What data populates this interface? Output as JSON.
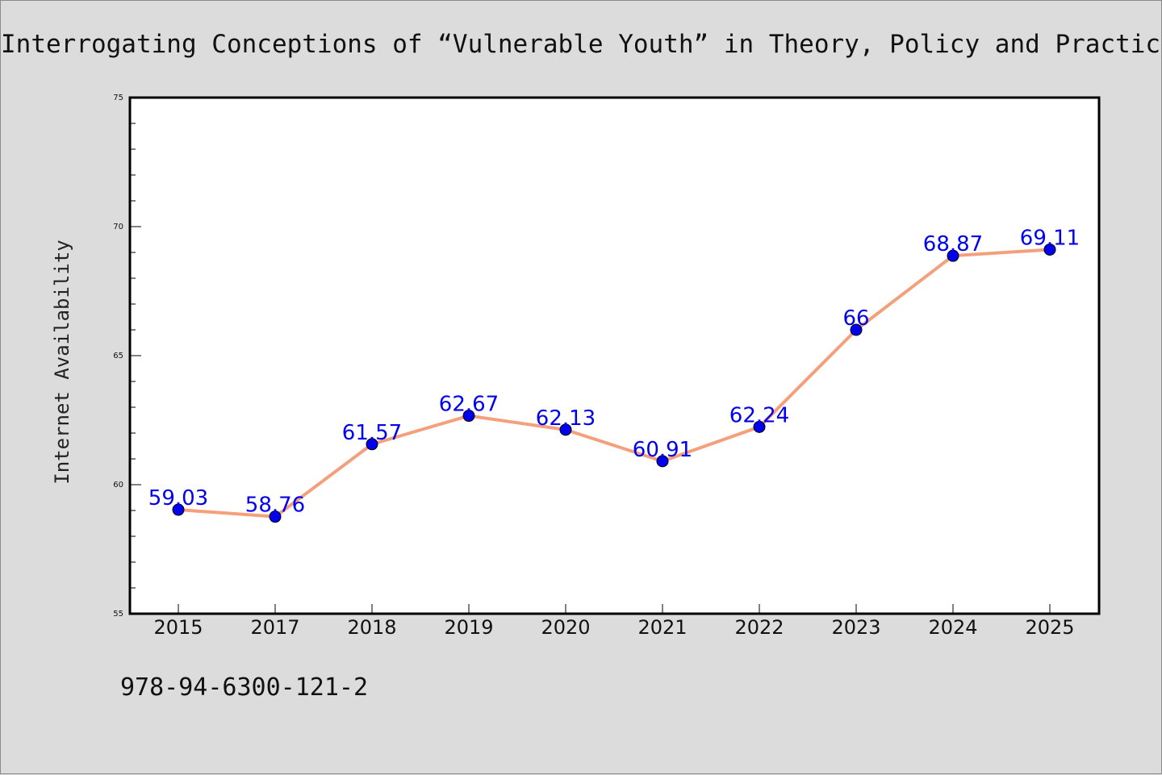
{
  "title": "Interrogating Conceptions of “Vulnerable Youth” in Theory, Policy and Practice",
  "isbn": "978-94-6300-121-2",
  "chart_data": {
    "type": "line",
    "title": "Interrogating Conceptions of “Vulnerable Youth” in Theory, Policy and Practice",
    "xlabel": "",
    "ylabel": "Internet Availability",
    "categories": [
      "2015",
      "2017",
      "2018",
      "2019",
      "2020",
      "2021",
      "2022",
      "2023",
      "2024",
      "2025"
    ],
    "values": [
      59.03,
      58.76,
      61.57,
      62.67,
      62.13,
      60.91,
      62.24,
      66,
      68.87,
      69.11
    ],
    "data_labels": [
      "59.03",
      "58.76",
      "61.57",
      "62.67",
      "62.13",
      "60.91",
      "62.24",
      "66",
      "68.87",
      "69.11"
    ],
    "ylim": [
      55,
      75
    ],
    "yticks": [
      55,
      60,
      65,
      70,
      75
    ],
    "yminor_step": 1,
    "grid": false,
    "legend": "none",
    "colors": {
      "line": "#f4a07c",
      "marker": "#0000ee",
      "label": "#0000ee",
      "background": "#dcdcdc",
      "plot_area": "#ffffff"
    }
  }
}
